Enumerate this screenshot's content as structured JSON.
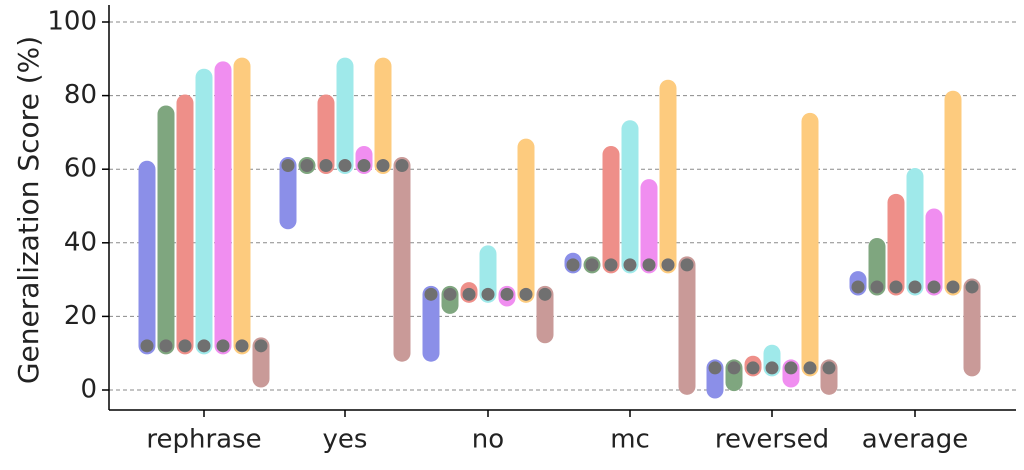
{
  "chart_data": {
    "type": "bar",
    "ylabel": "Generalization Score (%)",
    "xlabel": "",
    "ylim": [
      0,
      100
    ],
    "yticks": [
      0,
      20,
      40,
      60,
      80,
      100
    ],
    "grid": "horizontal-dashed",
    "categories": [
      "rephrase",
      "yes",
      "no",
      "mc",
      "reversed",
      "average"
    ],
    "baseline": [
      12,
      61,
      26,
      34,
      6,
      28
    ],
    "series": [
      {
        "color": "#8b8fe8",
        "values": [
          60,
          46,
          10,
          35,
          0,
          30
        ]
      },
      {
        "color": "#7fa67f",
        "values": [
          75,
          61,
          23,
          34,
          2,
          39
        ]
      },
      {
        "color": "#ee8f89",
        "values": [
          78,
          78,
          27,
          64,
          7,
          51
        ]
      },
      {
        "color": "#9fe9ea",
        "values": [
          85,
          88,
          37,
          71,
          10,
          58
        ]
      },
      {
        "color": "#f08ef0",
        "values": [
          87,
          64,
          25,
          55,
          3,
          47
        ]
      },
      {
        "color": "#fdcb7e",
        "values": [
          88,
          88,
          66,
          82,
          73,
          79
        ]
      },
      {
        "color": "#c99a98",
        "values": [
          3,
          10,
          15,
          1,
          1,
          6
        ]
      }
    ]
  }
}
